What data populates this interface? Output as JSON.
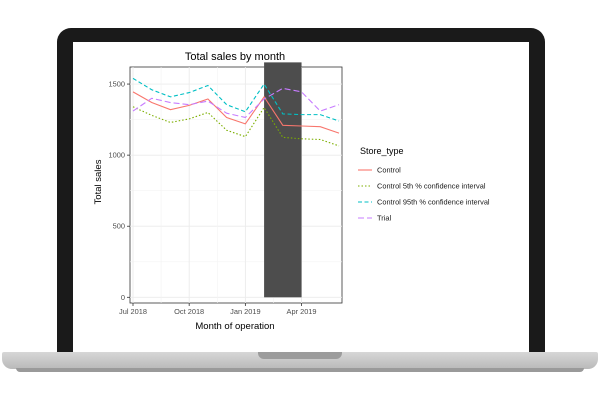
{
  "chart_data": {
    "type": "line",
    "title": "Total sales by month",
    "xlabel": "Month of operation",
    "ylabel": "Total sales",
    "x_ticks": [
      "Jul 2018",
      "Oct 2018",
      "Jan 2019",
      "Apr 2019"
    ],
    "y_ticks": [
      "0",
      "500",
      "1000",
      "1500"
    ],
    "ylim": [
      -40,
      1620
    ],
    "x": [
      "2018-07",
      "2018-08",
      "2018-09",
      "2018-10",
      "2018-11",
      "2018-12",
      "2019-01",
      "2019-02",
      "2019-03",
      "2019-04",
      "2019-05",
      "2019-06"
    ],
    "trial_period": {
      "start": "2019-02",
      "end": "2019-04",
      "color": "#4d4d4d"
    },
    "grid": true,
    "background": "#ffffff",
    "legend": {
      "title": "Store_type",
      "position": "right"
    },
    "series": [
      {
        "name": "Control",
        "color": "#f8766d",
        "dash": "solid",
        "values": [
          1445,
          1370,
          1320,
          1350,
          1395,
          1265,
          1220,
          1410,
          1210,
          1205,
          1200,
          1155
        ]
      },
      {
        "name": "Control 5th % confidence interval",
        "color": "#7cae00",
        "dash": "dotted",
        "values": [
          1340,
          1280,
          1230,
          1255,
          1300,
          1175,
          1130,
          1335,
          1125,
          1115,
          1110,
          1065
        ]
      },
      {
        "name": "Control 95th % confidence interval",
        "color": "#00bfc4",
        "dash": "dashed",
        "values": [
          1540,
          1460,
          1410,
          1440,
          1490,
          1355,
          1305,
          1500,
          1290,
          1285,
          1285,
          1240
        ]
      },
      {
        "name": "Trial",
        "color": "#c77cff",
        "dash": "longdash",
        "values": [
          1310,
          1400,
          1370,
          1355,
          1380,
          1295,
          1265,
          1395,
          1470,
          1445,
          1310,
          1355
        ]
      }
    ]
  }
}
